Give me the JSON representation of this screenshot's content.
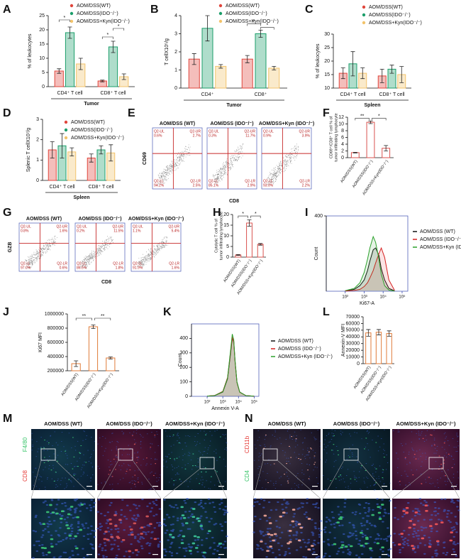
{
  "chart_data": [
    {
      "panel": "A",
      "type": "bar",
      "ylabel": "% of leukocytes",
      "categories": [
        "CD4⁺ T cell",
        "CD8⁺ T cell"
      ],
      "group_label": "Tumor",
      "ylim": [
        0,
        25
      ],
      "yticks": [
        0,
        5,
        10,
        15,
        20,
        25
      ],
      "series": [
        {
          "name": "AOM/DSS(WT)",
          "color": "#e0463c",
          "values": [
            5.5,
            2
          ],
          "errors": [
            0.8,
            0.3
          ]
        },
        {
          "name": "AOM/DSS(IDO⁻/⁻)",
          "color": "#1b9e6a",
          "values": [
            19,
            14
          ],
          "errors": [
            2,
            2
          ]
        },
        {
          "name": "AOM/DSS+Kyn(IDO⁻/⁻)",
          "color": "#f2c36b",
          "values": [
            8,
            3.5
          ],
          "errors": [
            2,
            1
          ]
        }
      ],
      "annotations": [
        "*",
        "*",
        "*"
      ]
    },
    {
      "panel": "B",
      "type": "bar",
      "ylabel": "T cellX10⁵/g",
      "categories": [
        "CD4⁺",
        "CD8⁺"
      ],
      "group_label": "Tumor",
      "ylim": [
        0,
        4
      ],
      "yticks": [
        0,
        1,
        2,
        3,
        4
      ],
      "series": [
        {
          "name": "AOM/DSS(WT)",
          "color": "#e0463c",
          "values": [
            1.6,
            1.6
          ],
          "errors": [
            0.3,
            0.2
          ]
        },
        {
          "name": "AOM/DSS(IDO⁻/⁻)",
          "color": "#1b9e6a",
          "values": [
            3.3,
            3.0
          ],
          "errors": [
            0.7,
            0.2
          ]
        },
        {
          "name": "AOM/DSS+Kyn(IDO⁻/⁻)",
          "color": "#f2c36b",
          "values": [
            1.2,
            1.1
          ],
          "errors": [
            0.1,
            0.1
          ]
        }
      ],
      "annotations": [
        "*",
        "*"
      ]
    },
    {
      "panel": "C",
      "type": "bar",
      "ylabel": "% of leukocytes",
      "categories": [
        "CD4⁺ T cell",
        "CD8⁺ T cell"
      ],
      "group_label": "Spleen",
      "ylim": [
        10,
        30
      ],
      "yticks": [
        10,
        15,
        20,
        25,
        30
      ],
      "series": [
        {
          "name": "AOM/DSS(WT)",
          "color": "#e0463c",
          "values": [
            15.5,
            14.5
          ],
          "errors": [
            2,
            2.5
          ]
        },
        {
          "name": "AOM/DSS(IDO⁻/⁻)",
          "color": "#1b9e6a",
          "values": [
            19,
            17
          ],
          "errors": [
            4.5,
            1.5
          ]
        },
        {
          "name": "AOM/DSS+Kyn(IDO⁻/⁻)",
          "color": "#f2c36b",
          "values": [
            15.5,
            15
          ],
          "errors": [
            2,
            3
          ]
        }
      ]
    },
    {
      "panel": "D",
      "type": "bar",
      "ylabel": "Splenic T cellX10⁷/g",
      "categories": [
        "CD4⁺ T cell",
        "CD8⁺ T cell"
      ],
      "group_label": "Spleen",
      "ylim": [
        0,
        3
      ],
      "yticks": [
        0,
        1,
        2,
        3
      ],
      "series": [
        {
          "name": "AOM/DSS(WT)",
          "color": "#e0463c",
          "values": [
            1.5,
            1.1
          ],
          "errors": [
            0.4,
            0.2
          ]
        },
        {
          "name": "AOM/DSS(IDO⁻/⁻)",
          "color": "#1b9e6a",
          "values": [
            1.7,
            1.5
          ],
          "errors": [
            0.6,
            0.2
          ]
        },
        {
          "name": "AOM/DSS+Kyn(IDO⁻/⁻)",
          "color": "#f2c36b",
          "values": [
            1.4,
            1.35
          ],
          "errors": [
            0.2,
            0.4
          ]
        }
      ]
    },
    {
      "panel": "F",
      "type": "bar",
      "ylabel": [
        "CD69⁺/CD8⁺ T cell % of",
        "tumor infiltrating lymphocyte"
      ],
      "categories": [
        "AOM/DSS(WT)",
        "AOM/DSS(IDO⁻/⁻)",
        "AOM/DSS+Kyn(IDO⁻/⁻)"
      ],
      "values": [
        1.5,
        10.5,
        2.8
      ],
      "errors": [
        0.1,
        0.4,
        0.8
      ],
      "color": "#d9534f",
      "ylim": [
        0,
        12
      ],
      "yticks": [
        0,
        2,
        4,
        6,
        8,
        10,
        12
      ],
      "annotations": [
        "**",
        "*"
      ]
    },
    {
      "panel": "H",
      "type": "bar",
      "ylabel": [
        "Cytolytic T cell % of",
        "tumor infiltrating lymphocyte"
      ],
      "categories": [
        "AOM/DSS(WT)",
        "AOM/DSS(IDO⁻/⁻)",
        "AOM/DSS+Kyn(IDO⁻/⁻)"
      ],
      "values": [
        1,
        16,
        6
      ],
      "errors": [
        0.2,
        1.5,
        0.4
      ],
      "color": "#d9534f",
      "ylim": [
        0,
        20
      ],
      "yticks": [
        0,
        5,
        10,
        15,
        20
      ],
      "annotations": [
        "*",
        "*"
      ]
    },
    {
      "panel": "I",
      "type": "line",
      "ylabel": "Count",
      "xlabel": "Ki67-A",
      "log_x": true,
      "xlim": [
        10,
        200000
      ],
      "xticks": [
        {
          "value": 100,
          "label": "10²"
        },
        {
          "value": 1000,
          "label": "10³"
        },
        {
          "value": 10000,
          "label": "10⁴"
        },
        {
          "value": 100000,
          "label": "10⁵"
        }
      ],
      "ylim": [
        0,
        400
      ],
      "yticks": [
        400
      ],
      "x": [
        100,
        300,
        600,
        1000,
        1500,
        2000,
        3000,
        4000,
        6000,
        8000,
        12000,
        20000,
        40000
      ],
      "series": [
        {
          "name": "AOM/DSS (WT)",
          "color": "#111111",
          "values": [
            2,
            10,
            30,
            60,
            110,
            160,
            220,
            230,
            190,
            120,
            60,
            15,
            2
          ]
        },
        {
          "name": "AOM/DSS (IDO⁻/⁻)",
          "color": "#d62020",
          "values": [
            1,
            4,
            10,
            25,
            45,
            70,
            110,
            150,
            200,
            230,
            180,
            60,
            5
          ]
        },
        {
          "name": "AOM/DSS+Kyn (IDO⁻/⁻)",
          "color": "#2aa02a",
          "values": [
            3,
            15,
            45,
            100,
            170,
            230,
            290,
            260,
            170,
            90,
            30,
            6,
            1
          ]
        }
      ]
    },
    {
      "panel": "J",
      "type": "bar",
      "ylabel": "Ki67 MFI",
      "categories": [
        "AOM/DSS(WT)",
        "AOM/DSS(IDO⁻/⁻)",
        "AOM/DSS+Kyn(IDO⁻/⁻)"
      ],
      "values": [
        300000,
        820000,
        380000
      ],
      "errors": [
        40000,
        25000,
        15000
      ],
      "color": "#e07b39",
      "ylim": [
        200000,
        1000000
      ],
      "yticks": [
        200000,
        400000,
        600000,
        800000,
        1000000
      ],
      "annotations": [
        "**",
        "**"
      ]
    },
    {
      "panel": "K",
      "type": "line",
      "ylabel": "Count",
      "xlabel": "Annexin V-A",
      "log_x": true,
      "xlim": [
        10,
        200000
      ],
      "xticks": [
        {
          "value": 100,
          "label": "10²"
        },
        {
          "value": 1000,
          "label": "10³"
        },
        {
          "value": 10000,
          "label": "10⁴"
        },
        {
          "value": 100000,
          "label": "10⁵"
        }
      ],
      "ylim": [
        0,
        500
      ],
      "yticks": [
        0,
        100,
        200,
        300,
        400
      ],
      "x": [
        100,
        300,
        1000,
        2000,
        3000,
        4000,
        5000,
        6000,
        8000,
        12000,
        30000,
        100000
      ],
      "series": [
        {
          "name": "AOM/DSS (WT)",
          "color": "#111111",
          "values": [
            2,
            5,
            30,
            120,
            280,
            400,
            380,
            250,
            100,
            30,
            5,
            1
          ]
        },
        {
          "name": "AOM/DSS (IDO⁻/⁻)",
          "color": "#d62020",
          "values": [
            2,
            6,
            35,
            130,
            290,
            410,
            370,
            240,
            95,
            28,
            5,
            1
          ]
        },
        {
          "name": "AOM/DSS+Kyn (IDO⁻/⁻)",
          "color": "#2aa02a",
          "values": [
            2,
            5,
            32,
            125,
            300,
            430,
            390,
            245,
            98,
            29,
            5,
            1
          ]
        }
      ]
    },
    {
      "panel": "L",
      "type": "bar",
      "ylabel": "Annexin-V MFI",
      "categories": [
        "AOM/DSS(WT)",
        "AOM/DSS(IDO⁻/⁻)",
        "AOM/DSS+Kyn(IDO⁻/⁻)"
      ],
      "values": [
        46000,
        47000,
        45000
      ],
      "errors": [
        5000,
        4000,
        4000
      ],
      "color": "#e07b39",
      "ylim": [
        0,
        70000
      ],
      "yticks": [
        0,
        10000,
        20000,
        30000,
        40000,
        50000,
        60000,
        70000
      ]
    }
  ],
  "flow_panels": [
    {
      "panel": "E",
      "x_label": "CD8",
      "y_label": "CD69",
      "plots": [
        {
          "title": "AOM/DSS (WT)",
          "quadrants": [
            {
              "name": "Q2-UL",
              "value": "0.6%"
            },
            {
              "name": "Q2-UR",
              "value": "2.7%"
            },
            {
              "name": "Q2-LL",
              "value": "94.2%"
            },
            {
              "name": "Q2-LR",
              "value": "2.5%"
            }
          ]
        },
        {
          "title": "AOM/DSS (IDO⁻/⁻)",
          "quadrants": [
            {
              "name": "Q2-UL",
              "value": "0.3%"
            },
            {
              "name": "Q2-UR",
              "value": "11.7%"
            },
            {
              "name": "Q2-LL",
              "value": "85.1%"
            },
            {
              "name": "Q2-LR",
              "value": "2.9%"
            }
          ]
        },
        {
          "title": "AOM/DSS+Kyn (IDO⁻/⁻)",
          "quadrants": [
            {
              "name": "Q2-UL",
              "value": "0.9%"
            },
            {
              "name": "Q2-UR",
              "value": "3.9%"
            },
            {
              "name": "Q2-LL",
              "value": "93.0%"
            },
            {
              "name": "Q2-LR",
              "value": "2.2%"
            }
          ]
        }
      ]
    },
    {
      "panel": "G",
      "x_label": "CD8",
      "y_label": "GZB",
      "plots": [
        {
          "title": "AOM/DSS (WT)",
          "quadrants": [
            {
              "name": "Q2-UL",
              "value": "0.8%"
            },
            {
              "name": "Q2-UR",
              "value": "1.6%"
            },
            {
              "name": "Q2-LL",
              "value": "97.0%"
            },
            {
              "name": "Q2-LR",
              "value": "0.6%"
            }
          ]
        },
        {
          "title": "AOM/DSS (IDO⁻/⁻)",
          "quadrants": [
            {
              "name": "Q2-UL",
              "value": "0.2%"
            },
            {
              "name": "Q2-UR",
              "value": "11.5%"
            },
            {
              "name": "Q2-LL",
              "value": "86.5%"
            },
            {
              "name": "Q2-LR",
              "value": "1.8%"
            }
          ]
        },
        {
          "title": "AOM/DSS+Kyn (IDO⁻/⁻)",
          "quadrants": [
            {
              "name": "Q2-UL",
              "value": "1.1%"
            },
            {
              "name": "Q2-UR",
              "value": "5.4%"
            },
            {
              "name": "Q2-LL",
              "value": "91.9%"
            },
            {
              "name": "Q2-LR",
              "value": "1.6%"
            }
          ]
        }
      ]
    }
  ],
  "micrograph_panels": [
    {
      "panel": "M",
      "channels": [
        "F4/80",
        "CD8"
      ],
      "columns": [
        "AOM/DSS (WT)",
        "AOM/DSS (IDO⁻/⁻)",
        "AOM/DSS+Kyn (IDO⁻/⁻)"
      ]
    },
    {
      "panel": "N",
      "channels": [
        "CD11b",
        "CD4"
      ],
      "columns": [
        "AOM/DSS (WT)",
        "AOM/DSS (IDO⁻/⁻)",
        "AOM/DSS+Kyn (IDO⁻/⁻)"
      ]
    }
  ]
}
